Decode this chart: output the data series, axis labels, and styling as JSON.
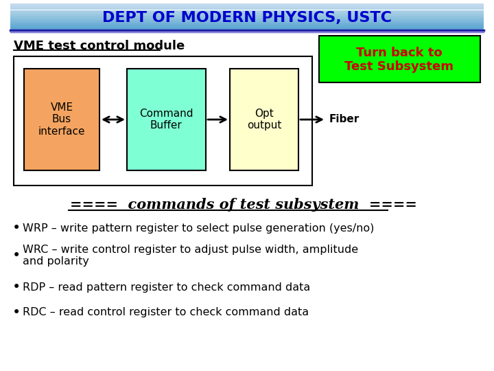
{
  "title": "DEPT OF MODERN PHYSICS, USTC",
  "title_text_color": "#0000cc",
  "slide_bg_color": "#ffffff",
  "subtitle": "VME test control module",
  "turn_back_text": "Turn back to\nTest Subsystem",
  "turn_back_bg": "#00ff00",
  "turn_back_text_color": "#cc0000",
  "box1_label": "VME\nBus\ninterface",
  "box1_color": "#f4a460",
  "box2_label": "Command\nBuffer",
  "box2_color": "#7fffd4",
  "box3_label": "Opt\noutput",
  "box3_color": "#ffffcc",
  "fiber_label": "Fiber",
  "section_header": "====  commands of test subsystem  ====",
  "bullets": [
    "WRP – write pattern register to select pulse generation (yes/no)",
    "WRC – write control register to adjust pulse width, amplitude\nand polarity",
    "RDP – read pattern register to check command data",
    "RDC – read control register to check command data"
  ]
}
